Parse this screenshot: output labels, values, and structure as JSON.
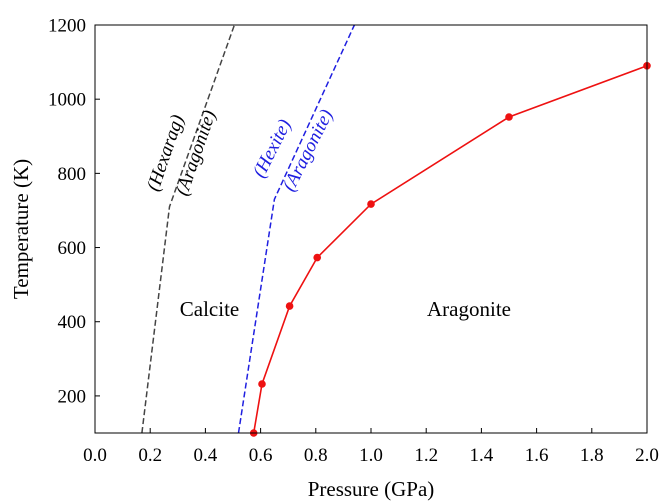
{
  "chart_data": {
    "type": "line",
    "title": "",
    "xlabel": "Pressure (GPa)",
    "ylabel": "Temperature (K)",
    "xlim": [
      0.0,
      2.0
    ],
    "ylim": [
      100,
      1200
    ],
    "xticks": [
      "0.0",
      "0.2",
      "0.4",
      "0.6",
      "0.8",
      "1.0",
      "1.2",
      "1.4",
      "1.6",
      "1.8",
      "2.0"
    ],
    "yticks": [
      "200",
      "400",
      "600",
      "800",
      "1000",
      "1200"
    ],
    "grid": false,
    "series": [
      {
        "color": "#444444",
        "style": "dashed",
        "markers": false,
        "x": [
          0.17,
          0.27,
          0.505
        ],
        "y": [
          100,
          710,
          1200
        ]
      },
      {
        "color": "#1f1fe0",
        "style": "dashed",
        "markers": false,
        "x": [
          0.52,
          0.65,
          0.94
        ],
        "y": [
          100,
          730,
          1200
        ]
      },
      {
        "color": "#ee1111",
        "style": "solid",
        "markers": true,
        "x": [
          0.575,
          0.605,
          0.705,
          0.805,
          1.0,
          1.5,
          2.0
        ],
        "y": [
          100,
          232,
          442,
          573,
          717,
          952,
          1090
        ]
      }
    ],
    "region_labels": [
      {
        "text": "Calcite",
        "x": 0.415,
        "y": 415
      },
      {
        "text": "Aragonite",
        "x": 1.355,
        "y": 415
      }
    ],
    "boundary_labels": [
      {
        "text": "(Hexarag)",
        "color": "#000000",
        "x": 0.275,
        "y": 850,
        "angle": -71
      },
      {
        "text": "(Aragonite)",
        "color": "#000000",
        "x": 0.385,
        "y": 850,
        "angle": -71
      },
      {
        "text": "(Hexite)",
        "color": "#1f1fe0",
        "x": 0.66,
        "y": 860,
        "angle": -63
      },
      {
        "text": "(Aragonite)",
        "color": "#1f1fe0",
        "x": 0.79,
        "y": 855,
        "angle": -63
      }
    ]
  }
}
